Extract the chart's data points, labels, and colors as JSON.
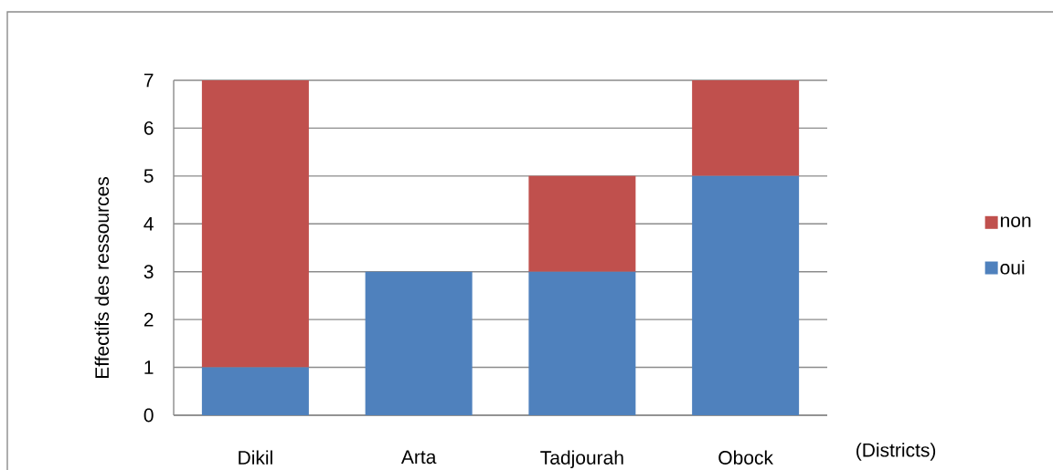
{
  "chart_data": {
    "type": "bar",
    "stacked": true,
    "categories": [
      "Dikil",
      "Arta",
      "Tadjourah",
      "Obock"
    ],
    "series": [
      {
        "name": "oui",
        "color": "#4f81bd",
        "values": [
          1,
          3,
          3,
          5
        ]
      },
      {
        "name": "non",
        "color": "#c0504d",
        "values": [
          6,
          0,
          2,
          2
        ]
      }
    ],
    "ylim": [
      0,
      7
    ],
    "yticks": [
      0,
      1,
      2,
      3,
      4,
      5,
      6,
      7
    ],
    "ylabel": "Effectifs des ressources",
    "xlabel": "(Districts)",
    "grid": "y",
    "legend": "right"
  }
}
